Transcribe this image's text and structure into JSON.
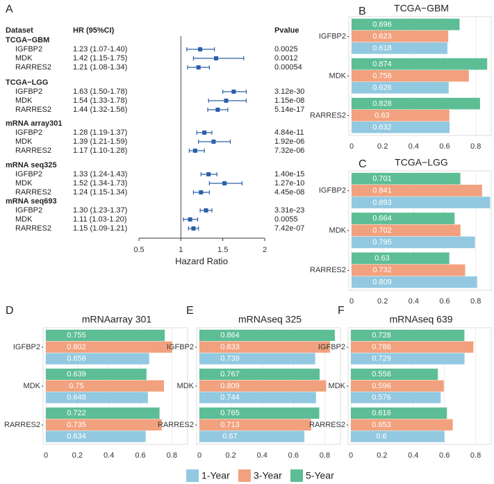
{
  "legend": [
    {
      "name": "1-Year",
      "color": "#92c9e0"
    },
    {
      "name": "3-Year",
      "color": "#f2a17e"
    },
    {
      "name": "5-Year",
      "color": "#5dbe95"
    }
  ],
  "chart_data": [
    {
      "type": "forest",
      "panel": "A",
      "column_headers": [
        "Dataset",
        "HR (95%CI)",
        "Pvalue"
      ],
      "xlabel": "Hazard Ratio",
      "xlim": [
        0.5,
        2
      ],
      "xticks": [
        0.5,
        1,
        1.5,
        2
      ],
      "reference": 1,
      "color": "#2b5fa8",
      "groups": [
        {
          "name": "TCGA−GBM",
          "rows": [
            {
              "gene": "IGFBP2",
              "hr_text": "1.23 (1.07-1.40)",
              "hr": 1.23,
              "lower": 1.07,
              "upper": 1.4,
              "pvalue": "0.0025"
            },
            {
              "gene": "MDK",
              "hr_text": "1.42 (1.15-1.75)",
              "hr": 1.42,
              "lower": 1.15,
              "upper": 1.75,
              "pvalue": "0.0012"
            },
            {
              "gene": "RARRES2",
              "hr_text": "1.21 (1.08-1.34)",
              "hr": 1.21,
              "lower": 1.08,
              "upper": 1.34,
              "pvalue": "0.00054"
            }
          ]
        },
        {
          "name": "TCGA−LGG",
          "rows": [
            {
              "gene": "IGFBP2",
              "hr_text": "1.63 (1.50-1.78)",
              "hr": 1.63,
              "lower": 1.5,
              "upper": 1.78,
              "pvalue": "3.12e-30"
            },
            {
              "gene": "MDK",
              "hr_text": "1.54 (1.33-1.78)",
              "hr": 1.54,
              "lower": 1.33,
              "upper": 1.78,
              "pvalue": "1.15e-08"
            },
            {
              "gene": "RARRES2",
              "hr_text": "1.44 (1.32-1.56)",
              "hr": 1.44,
              "lower": 1.32,
              "upper": 1.56,
              "pvalue": "5.14e-17"
            }
          ]
        },
        {
          "name": "mRNA array301",
          "rows": [
            {
              "gene": "IGFBP2",
              "hr_text": "1.28 (1.19-1.37)",
              "hr": 1.28,
              "lower": 1.19,
              "upper": 1.37,
              "pvalue": "4.84e-11"
            },
            {
              "gene": "MDK",
              "hr_text": "1.39 (1.21-1.59)",
              "hr": 1.39,
              "lower": 1.21,
              "upper": 1.59,
              "pvalue": "1.92e-06"
            },
            {
              "gene": "RARRES2",
              "hr_text": "1.17 (1.10-1.28)",
              "hr": 1.17,
              "lower": 1.1,
              "upper": 1.28,
              "pvalue": "7.32e-06"
            }
          ]
        },
        {
          "name": "mRNA seq325",
          "rows": [
            {
              "gene": "IGFBP2",
              "hr_text": "1.33 (1.24-1.43)",
              "hr": 1.33,
              "lower": 1.24,
              "upper": 1.43,
              "pvalue": "1.40e-15"
            },
            {
              "gene": "MDK",
              "hr_text": "1.52 (1.34-1.73)",
              "hr": 1.52,
              "lower": 1.34,
              "upper": 1.73,
              "pvalue": "1.27e-10"
            },
            {
              "gene": "RARRES2",
              "hr_text": "1.24 (1.15-1.34)",
              "hr": 1.24,
              "lower": 1.15,
              "upper": 1.34,
              "pvalue": "4.45e-08"
            }
          ]
        },
        {
          "name": "mRNA seq693",
          "rows": [
            {
              "gene": "IGFBP2",
              "hr_text": "1.30 (1.23-1.37)",
              "hr": 1.3,
              "lower": 1.23,
              "upper": 1.37,
              "pvalue": "3.31e-23"
            },
            {
              "gene": "MDK",
              "hr_text": "1.11 (1.03-1.20)",
              "hr": 1.11,
              "lower": 1.03,
              "upper": 1.2,
              "pvalue": "0.0055"
            },
            {
              "gene": "RARRES2",
              "hr_text": "1.15 (1.09-1.21)",
              "hr": 1.15,
              "lower": 1.09,
              "upper": 1.21,
              "pvalue": "7.42e-07"
            }
          ]
        }
      ]
    },
    {
      "type": "hbar",
      "panel": "B",
      "title": "TCGA−GBM",
      "categories": [
        "IGFBP2",
        "MDK",
        "RARRES2"
      ],
      "xlim": [
        0,
        0.9
      ],
      "xticks": [
        0,
        0.2,
        0.4,
        0.6,
        0.8
      ],
      "series": [
        {
          "values": [
            0.618,
            0.626,
            0.632
          ]
        },
        {
          "values": [
            0.623,
            0.756,
            0.63
          ]
        },
        {
          "values": [
            0.696,
            0.874,
            0.828
          ]
        }
      ]
    },
    {
      "type": "hbar",
      "panel": "C",
      "title": "TCGA−LGG",
      "categories": [
        "IGFBP2",
        "MDK",
        "RARRES2"
      ],
      "xlim": [
        0,
        0.9
      ],
      "xticks": [
        0,
        0.2,
        0.4,
        0.6,
        0.8
      ],
      "series": [
        {
          "values": [
            0.893,
            0.795,
            0.809
          ]
        },
        {
          "values": [
            0.841,
            0.702,
            0.732
          ]
        },
        {
          "values": [
            0.701,
            0.664,
            0.63
          ]
        }
      ]
    },
    {
      "type": "hbar",
      "panel": "D",
      "title": "mRNAarray 301",
      "categories": [
        "IGFBP2",
        "MDK",
        "RARRES2"
      ],
      "xlim": [
        0,
        0.9
      ],
      "xticks": [
        0,
        0.2,
        0.4,
        0.6,
        0.8
      ],
      "series": [
        {
          "values": [
            0.656,
            0.648,
            0.634
          ]
        },
        {
          "values": [
            0.802,
            0.75,
            0.735
          ]
        },
        {
          "values": [
            0.755,
            0.639,
            0.722
          ]
        }
      ]
    },
    {
      "type": "hbar",
      "panel": "E",
      "title": "mRNAseq 325",
      "categories": [
        "IGFBP2",
        "MDK",
        "RARRES2"
      ],
      "xlim": [
        0,
        0.9
      ],
      "xticks": [
        0,
        0.2,
        0.4,
        0.6,
        0.8
      ],
      "series": [
        {
          "values": [
            0.739,
            0.744,
            0.67
          ]
        },
        {
          "values": [
            0.833,
            0.809,
            0.713
          ]
        },
        {
          "values": [
            0.864,
            0.767,
            0.765
          ]
        }
      ]
    },
    {
      "type": "hbar",
      "panel": "F",
      "title": "mRNAseq 639",
      "categories": [
        "IGFBP2",
        "MDK",
        "RARRES2"
      ],
      "xlim": [
        0,
        0.9
      ],
      "xticks": [
        0,
        0.2,
        0.4,
        0.6,
        0.8
      ],
      "series": [
        {
          "values": [
            0.729,
            0.576,
            0.6
          ]
        },
        {
          "values": [
            0.786,
            0.596,
            0.653
          ]
        },
        {
          "values": [
            0.728,
            0.558,
            0.616
          ]
        }
      ]
    }
  ]
}
